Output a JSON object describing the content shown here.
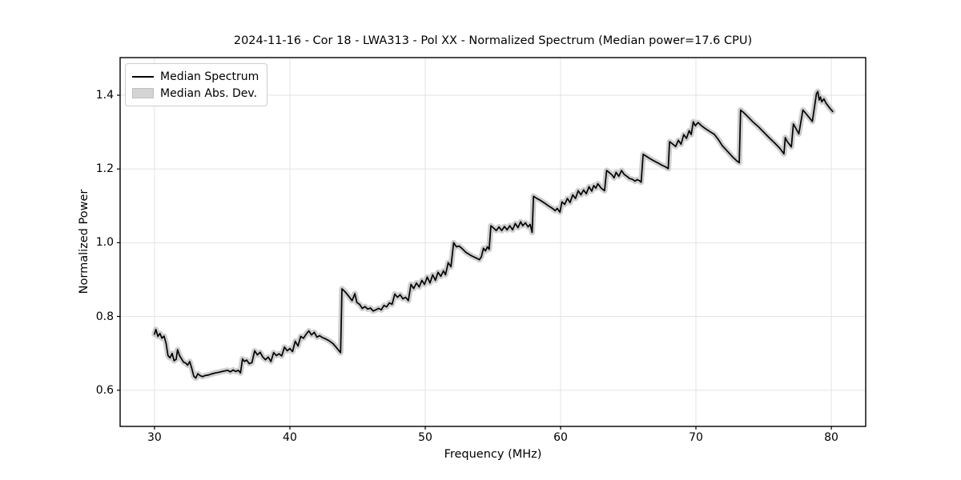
{
  "figure": {
    "title": "2024-11-16 - Cor 18 - LWA313 - Pol XX - Normalized Spectrum (Median power=17.6 CPU)"
  },
  "chart_data": {
    "type": "line",
    "title": "2024-11-16 - Cor 18 - LWA313 - Pol XX - Normalized Spectrum (Median power=17.6 CPU)",
    "xlabel": "Frequency (MHz)",
    "ylabel": "Normalized Power",
    "xlim": [
      27.46,
      82.54
    ],
    "ylim": [
      0.502,
      1.502
    ],
    "xticks": [
      30,
      40,
      50,
      60,
      70,
      80
    ],
    "xtick_labels": [
      "30",
      "40",
      "50",
      "60",
      "70",
      "80"
    ],
    "yticks": [
      0.6,
      0.8,
      1.0,
      1.2,
      1.4
    ],
    "ytick_labels": [
      "0.6",
      "0.8",
      "1.0",
      "1.2",
      "1.4"
    ],
    "grid": true,
    "grid_color": "#e0e0e0",
    "spine_color": "#000000",
    "legend": {
      "position": "upper-left",
      "entries": [
        {
          "label": "Median Spectrum",
          "type": "line",
          "color": "#000000"
        },
        {
          "label": "Median Abs. Dev.",
          "type": "patch",
          "color": "#d4d4d4"
        }
      ]
    },
    "series": [
      {
        "name": "Median Abs. Dev.",
        "style": "band-around-median",
        "color": "#bfbfbf",
        "band_halfwidth": 0.006
      },
      {
        "name": "Median Spectrum",
        "style": "line",
        "color": "#000000",
        "points": [
          [
            30.0,
            0.752
          ],
          [
            30.1,
            0.765
          ],
          [
            30.25,
            0.746
          ],
          [
            30.4,
            0.754
          ],
          [
            30.55,
            0.741
          ],
          [
            30.7,
            0.747
          ],
          [
            30.85,
            0.728
          ],
          [
            31.0,
            0.694
          ],
          [
            31.15,
            0.688
          ],
          [
            31.3,
            0.7
          ],
          [
            31.45,
            0.68
          ],
          [
            31.6,
            0.684
          ],
          [
            31.7,
            0.71
          ],
          [
            31.85,
            0.694
          ],
          [
            32.0,
            0.685
          ],
          [
            32.15,
            0.676
          ],
          [
            32.3,
            0.674
          ],
          [
            32.45,
            0.668
          ],
          [
            32.6,
            0.678
          ],
          [
            32.75,
            0.66
          ],
          [
            32.9,
            0.638
          ],
          [
            33.05,
            0.633
          ],
          [
            33.2,
            0.645
          ],
          [
            33.35,
            0.64
          ],
          [
            33.55,
            0.637
          ],
          [
            33.75,
            0.64
          ],
          [
            33.95,
            0.641
          ],
          [
            34.2,
            0.644
          ],
          [
            34.5,
            0.647
          ],
          [
            34.8,
            0.649
          ],
          [
            35.1,
            0.652
          ],
          [
            35.4,
            0.654
          ],
          [
            35.6,
            0.65
          ],
          [
            35.8,
            0.655
          ],
          [
            36.0,
            0.651
          ],
          [
            36.2,
            0.654
          ],
          [
            36.35,
            0.647
          ],
          [
            36.5,
            0.685
          ],
          [
            36.65,
            0.678
          ],
          [
            36.8,
            0.682
          ],
          [
            37.0,
            0.672
          ],
          [
            37.2,
            0.675
          ],
          [
            37.4,
            0.707
          ],
          [
            37.6,
            0.696
          ],
          [
            37.8,
            0.703
          ],
          [
            38.0,
            0.69
          ],
          [
            38.2,
            0.683
          ],
          [
            38.4,
            0.69
          ],
          [
            38.6,
            0.678
          ],
          [
            38.8,
            0.702
          ],
          [
            39.0,
            0.694
          ],
          [
            39.2,
            0.699
          ],
          [
            39.4,
            0.693
          ],
          [
            39.6,
            0.717
          ],
          [
            39.8,
            0.707
          ],
          [
            40.0,
            0.713
          ],
          [
            40.2,
            0.705
          ],
          [
            40.4,
            0.733
          ],
          [
            40.6,
            0.72
          ],
          [
            40.8,
            0.746
          ],
          [
            41.0,
            0.741
          ],
          [
            41.2,
            0.752
          ],
          [
            41.4,
            0.761
          ],
          [
            41.6,
            0.75
          ],
          [
            41.8,
            0.757
          ],
          [
            42.0,
            0.744
          ],
          [
            42.2,
            0.748
          ],
          [
            42.4,
            0.743
          ],
          [
            42.6,
            0.74
          ],
          [
            42.9,
            0.734
          ],
          [
            43.2,
            0.726
          ],
          [
            43.5,
            0.713
          ],
          [
            43.75,
            0.702
          ],
          [
            43.85,
            0.875
          ],
          [
            44.1,
            0.866
          ],
          [
            44.35,
            0.855
          ],
          [
            44.6,
            0.843
          ],
          [
            44.8,
            0.862
          ],
          [
            44.95,
            0.838
          ],
          [
            45.15,
            0.833
          ],
          [
            45.35,
            0.822
          ],
          [
            45.55,
            0.827
          ],
          [
            45.75,
            0.82
          ],
          [
            45.95,
            0.823
          ],
          [
            46.15,
            0.815
          ],
          [
            46.35,
            0.818
          ],
          [
            46.55,
            0.822
          ],
          [
            46.75,
            0.818
          ],
          [
            46.95,
            0.83
          ],
          [
            47.15,
            0.826
          ],
          [
            47.35,
            0.837
          ],
          [
            47.55,
            0.833
          ],
          [
            47.75,
            0.861
          ],
          [
            47.95,
            0.852
          ],
          [
            48.15,
            0.859
          ],
          [
            48.35,
            0.848
          ],
          [
            48.55,
            0.852
          ],
          [
            48.75,
            0.843
          ],
          [
            48.95,
            0.887
          ],
          [
            49.15,
            0.876
          ],
          [
            49.35,
            0.891
          ],
          [
            49.55,
            0.88
          ],
          [
            49.75,
            0.898
          ],
          [
            49.95,
            0.887
          ],
          [
            50.15,
            0.907
          ],
          [
            50.35,
            0.891
          ],
          [
            50.55,
            0.913
          ],
          [
            50.75,
            0.898
          ],
          [
            50.95,
            0.92
          ],
          [
            51.15,
            0.909
          ],
          [
            51.35,
            0.924
          ],
          [
            51.5,
            0.913
          ],
          [
            51.7,
            0.946
          ],
          [
            51.9,
            0.935
          ],
          [
            52.1,
            1.0
          ],
          [
            52.3,
            0.989
          ],
          [
            52.5,
            0.991
          ],
          [
            52.7,
            0.985
          ],
          [
            53.0,
            0.974
          ],
          [
            53.4,
            0.965
          ],
          [
            53.8,
            0.958
          ],
          [
            54.0,
            0.954
          ],
          [
            54.15,
            0.962
          ],
          [
            54.3,
            0.985
          ],
          [
            54.45,
            0.978
          ],
          [
            54.6,
            0.989
          ],
          [
            54.72,
            0.982
          ],
          [
            54.85,
            1.046
          ],
          [
            55.05,
            1.04
          ],
          [
            55.25,
            1.033
          ],
          [
            55.45,
            1.043
          ],
          [
            55.65,
            1.033
          ],
          [
            55.85,
            1.044
          ],
          [
            56.05,
            1.035
          ],
          [
            56.25,
            1.046
          ],
          [
            56.45,
            1.035
          ],
          [
            56.65,
            1.052
          ],
          [
            56.85,
            1.041
          ],
          [
            57.05,
            1.057
          ],
          [
            57.2,
            1.046
          ],
          [
            57.4,
            1.054
          ],
          [
            57.6,
            1.043
          ],
          [
            57.75,
            1.05
          ],
          [
            57.9,
            1.028
          ],
          [
            58.0,
            1.126
          ],
          [
            58.2,
            1.121
          ],
          [
            58.5,
            1.115
          ],
          [
            58.8,
            1.108
          ],
          [
            59.1,
            1.1
          ],
          [
            59.4,
            1.093
          ],
          [
            59.6,
            1.087
          ],
          [
            59.75,
            1.093
          ],
          [
            59.95,
            1.083
          ],
          [
            60.1,
            1.111
          ],
          [
            60.3,
            1.104
          ],
          [
            60.5,
            1.12
          ],
          [
            60.7,
            1.109
          ],
          [
            60.9,
            1.13
          ],
          [
            61.1,
            1.12
          ],
          [
            61.3,
            1.141
          ],
          [
            61.5,
            1.13
          ],
          [
            61.7,
            1.143
          ],
          [
            61.9,
            1.133
          ],
          [
            62.1,
            1.152
          ],
          [
            62.3,
            1.14
          ],
          [
            62.45,
            1.155
          ],
          [
            62.6,
            1.148
          ],
          [
            62.75,
            1.16
          ],
          [
            63.0,
            1.148
          ],
          [
            63.25,
            1.141
          ],
          [
            63.4,
            1.196
          ],
          [
            63.6,
            1.19
          ],
          [
            63.8,
            1.184
          ],
          [
            63.95,
            1.176
          ],
          [
            64.1,
            1.191
          ],
          [
            64.3,
            1.18
          ],
          [
            64.5,
            1.196
          ],
          [
            64.7,
            1.185
          ],
          [
            64.9,
            1.18
          ],
          [
            65.1,
            1.174
          ],
          [
            65.3,
            1.172
          ],
          [
            65.5,
            1.167
          ],
          [
            65.65,
            1.171
          ],
          [
            65.8,
            1.169
          ],
          [
            65.95,
            1.164
          ],
          [
            66.1,
            1.24
          ],
          [
            66.35,
            1.234
          ],
          [
            66.6,
            1.228
          ],
          [
            66.9,
            1.222
          ],
          [
            67.2,
            1.216
          ],
          [
            67.5,
            1.21
          ],
          [
            67.75,
            1.206
          ],
          [
            67.95,
            1.201
          ],
          [
            68.05,
            1.274
          ],
          [
            68.3,
            1.267
          ],
          [
            68.5,
            1.261
          ],
          [
            68.7,
            1.278
          ],
          [
            68.9,
            1.267
          ],
          [
            69.1,
            1.293
          ],
          [
            69.3,
            1.283
          ],
          [
            69.5,
            1.304
          ],
          [
            69.65,
            1.293
          ],
          [
            69.8,
            1.328
          ],
          [
            69.95,
            1.317
          ],
          [
            70.15,
            1.326
          ],
          [
            70.45,
            1.316
          ],
          [
            70.75,
            1.308
          ],
          [
            71.05,
            1.301
          ],
          [
            71.35,
            1.294
          ],
          [
            71.65,
            1.28
          ],
          [
            71.95,
            1.263
          ],
          [
            72.35,
            1.247
          ],
          [
            72.75,
            1.231
          ],
          [
            73.05,
            1.221
          ],
          [
            73.2,
            1.217
          ],
          [
            73.3,
            1.36
          ],
          [
            73.55,
            1.352
          ],
          [
            73.8,
            1.343
          ],
          [
            74.2,
            1.328
          ],
          [
            74.6,
            1.315
          ],
          [
            75.0,
            1.3
          ],
          [
            75.4,
            1.285
          ],
          [
            75.8,
            1.271
          ],
          [
            76.2,
            1.256
          ],
          [
            76.5,
            1.241
          ],
          [
            76.6,
            1.285
          ],
          [
            76.75,
            1.274
          ],
          [
            76.9,
            1.267
          ],
          [
            77.05,
            1.26
          ],
          [
            77.2,
            1.322
          ],
          [
            77.4,
            1.309
          ],
          [
            77.6,
            1.295
          ],
          [
            77.9,
            1.36
          ],
          [
            78.15,
            1.349
          ],
          [
            78.4,
            1.338
          ],
          [
            78.6,
            1.329
          ],
          [
            78.9,
            1.404
          ],
          [
            79.0,
            1.41
          ],
          [
            79.1,
            1.387
          ],
          [
            79.2,
            1.395
          ],
          [
            79.3,
            1.382
          ],
          [
            79.45,
            1.39
          ],
          [
            79.6,
            1.379
          ],
          [
            79.8,
            1.369
          ],
          [
            80.0,
            1.36
          ],
          [
            80.1,
            1.356
          ]
        ]
      }
    ]
  }
}
